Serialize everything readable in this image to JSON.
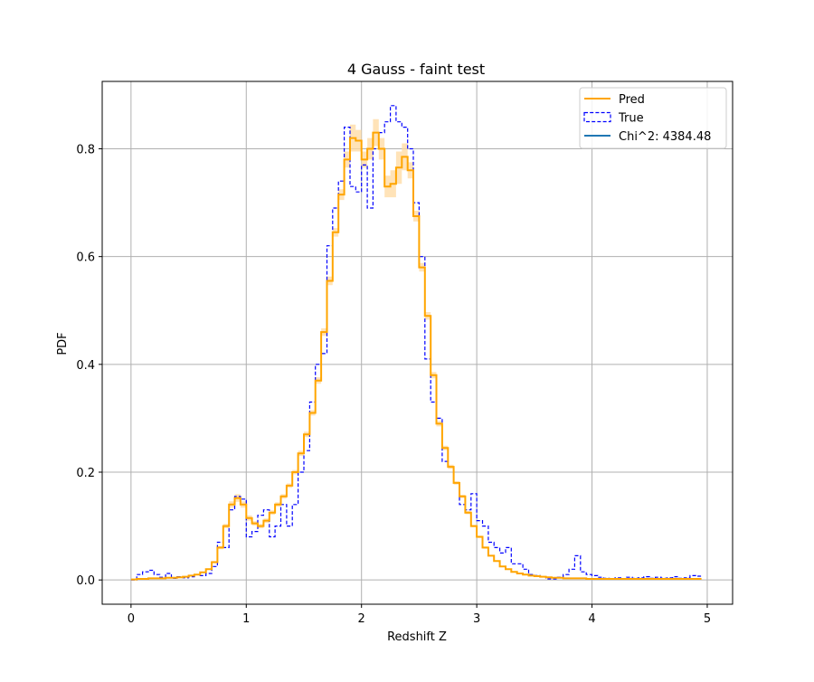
{
  "chart_data": {
    "type": "line",
    "title": "4 Gauss - faint test",
    "xlabel": "Redshift Z",
    "ylabel": "PDF",
    "xlim": [
      -0.25,
      5.22
    ],
    "ylim": [
      -0.045,
      0.925
    ],
    "x_ticks": [
      0,
      1,
      2,
      3,
      4,
      5
    ],
    "y_ticks": [
      0.0,
      0.2,
      0.4,
      0.6,
      0.8
    ],
    "x_tick_labels": [
      "0",
      "1",
      "2",
      "3",
      "4",
      "5"
    ],
    "y_tick_labels": [
      "0.0",
      "0.2",
      "0.4",
      "0.6",
      "0.8"
    ],
    "grid": true,
    "legend_position": "top-right",
    "bin_width": 0.05,
    "series": [
      {
        "name": "Pred",
        "style": "solid-step",
        "color": "#FFA500",
        "band_color": "#FFD9A0",
        "x": [
          0.0,
          0.05,
          0.1,
          0.15,
          0.2,
          0.25,
          0.3,
          0.35,
          0.4,
          0.45,
          0.5,
          0.55,
          0.6,
          0.65,
          0.7,
          0.75,
          0.8,
          0.85,
          0.9,
          0.95,
          1.0,
          1.05,
          1.1,
          1.15,
          1.2,
          1.25,
          1.3,
          1.35,
          1.4,
          1.45,
          1.5,
          1.55,
          1.6,
          1.65,
          1.7,
          1.75,
          1.8,
          1.85,
          1.9,
          1.95,
          2.0,
          2.05,
          2.1,
          2.15,
          2.2,
          2.25,
          2.3,
          2.35,
          2.4,
          2.45,
          2.5,
          2.55,
          2.6,
          2.65,
          2.7,
          2.75,
          2.8,
          2.85,
          2.9,
          2.95,
          3.0,
          3.05,
          3.1,
          3.15,
          3.2,
          3.25,
          3.3,
          3.35,
          3.4,
          3.45,
          3.5,
          3.55,
          3.6,
          3.65,
          3.7,
          3.75,
          3.8,
          3.85,
          3.9,
          3.95,
          4.0,
          4.05,
          4.1,
          4.15,
          4.2,
          4.25,
          4.3,
          4.35,
          4.4,
          4.45,
          4.5,
          4.55,
          4.6,
          4.65,
          4.7,
          4.75,
          4.8,
          4.85,
          4.9
        ],
        "values": [
          0.001,
          0.002,
          0.002,
          0.003,
          0.003,
          0.003,
          0.004,
          0.004,
          0.005,
          0.006,
          0.008,
          0.01,
          0.014,
          0.02,
          0.033,
          0.06,
          0.1,
          0.14,
          0.152,
          0.14,
          0.115,
          0.105,
          0.1,
          0.11,
          0.125,
          0.14,
          0.155,
          0.175,
          0.2,
          0.235,
          0.27,
          0.31,
          0.37,
          0.46,
          0.555,
          0.645,
          0.715,
          0.78,
          0.82,
          0.815,
          0.78,
          0.8,
          0.83,
          0.8,
          0.73,
          0.735,
          0.765,
          0.785,
          0.76,
          0.675,
          0.58,
          0.49,
          0.38,
          0.29,
          0.245,
          0.21,
          0.18,
          0.155,
          0.125,
          0.1,
          0.08,
          0.06,
          0.045,
          0.035,
          0.025,
          0.02,
          0.015,
          0.012,
          0.01,
          0.008,
          0.007,
          0.006,
          0.005,
          0.004,
          0.004,
          0.003,
          0.003,
          0.003,
          0.003,
          0.002,
          0.002,
          0.002,
          0.002,
          0.002,
          0.002,
          0.002,
          0.002,
          0.002,
          0.002,
          0.002,
          0.002,
          0.002,
          0.002,
          0.002,
          0.002,
          0.002,
          0.002,
          0.002,
          0.002
        ],
        "uncertainty": [
          0.0,
          0.0,
          0.0,
          0.0,
          0.0,
          0.0,
          0.0,
          0.0,
          0.0,
          0.0,
          0.0,
          0.0,
          0.0,
          0.0,
          0.002,
          0.003,
          0.004,
          0.006,
          0.007,
          0.006,
          0.005,
          0.004,
          0.004,
          0.004,
          0.004,
          0.004,
          0.004,
          0.004,
          0.004,
          0.005,
          0.005,
          0.005,
          0.006,
          0.007,
          0.008,
          0.008,
          0.01,
          0.015,
          0.025,
          0.02,
          0.015,
          0.02,
          0.025,
          0.02,
          0.02,
          0.025,
          0.03,
          0.025,
          0.015,
          0.01,
          0.008,
          0.007,
          0.006,
          0.005,
          0.004,
          0.004,
          0.003,
          0.003,
          0.003,
          0.002,
          0.002,
          0.002,
          0.001,
          0.001,
          0.001,
          0.001,
          0.001,
          0.0,
          0.0,
          0.0,
          0.0,
          0.0,
          0.0,
          0.0,
          0.0,
          0.0,
          0.0,
          0.0,
          0.0,
          0.0,
          0.0,
          0.0,
          0.0,
          0.0,
          0.0,
          0.0,
          0.0,
          0.0,
          0.0,
          0.0,
          0.0,
          0.0,
          0.0,
          0.0,
          0.0,
          0.0,
          0.0,
          0.0,
          0.0
        ]
      },
      {
        "name": "True",
        "style": "dashed-step",
        "color": "#0000FF",
        "x": [
          0.0,
          0.05,
          0.1,
          0.15,
          0.2,
          0.25,
          0.3,
          0.35,
          0.4,
          0.45,
          0.5,
          0.55,
          0.6,
          0.65,
          0.7,
          0.75,
          0.8,
          0.85,
          0.9,
          0.95,
          1.0,
          1.05,
          1.1,
          1.15,
          1.2,
          1.25,
          1.3,
          1.35,
          1.4,
          1.45,
          1.5,
          1.55,
          1.6,
          1.65,
          1.7,
          1.75,
          1.8,
          1.85,
          1.9,
          1.95,
          2.0,
          2.05,
          2.1,
          2.15,
          2.2,
          2.25,
          2.3,
          2.35,
          2.4,
          2.45,
          2.5,
          2.55,
          2.6,
          2.65,
          2.7,
          2.75,
          2.8,
          2.85,
          2.9,
          2.95,
          3.0,
          3.05,
          3.1,
          3.15,
          3.2,
          3.25,
          3.3,
          3.35,
          3.4,
          3.45,
          3.5,
          3.55,
          3.6,
          3.65,
          3.7,
          3.75,
          3.8,
          3.85,
          3.9,
          3.95,
          4.0,
          4.05,
          4.1,
          4.15,
          4.2,
          4.25,
          4.3,
          4.35,
          4.4,
          4.45,
          4.5,
          4.55,
          4.6,
          4.65,
          4.7,
          4.75,
          4.8,
          4.85,
          4.9
        ],
        "values": [
          0.0,
          0.01,
          0.015,
          0.018,
          0.01,
          0.005,
          0.012,
          0.003,
          0.006,
          0.004,
          0.006,
          0.01,
          0.008,
          0.012,
          0.025,
          0.07,
          0.06,
          0.13,
          0.155,
          0.15,
          0.08,
          0.09,
          0.12,
          0.13,
          0.08,
          0.1,
          0.14,
          0.1,
          0.14,
          0.2,
          0.24,
          0.33,
          0.4,
          0.42,
          0.62,
          0.69,
          0.74,
          0.84,
          0.73,
          0.72,
          0.77,
          0.69,
          0.8,
          0.83,
          0.85,
          0.88,
          0.85,
          0.84,
          0.8,
          0.7,
          0.6,
          0.41,
          0.33,
          0.3,
          0.22,
          0.21,
          0.18,
          0.14,
          0.13,
          0.16,
          0.11,
          0.1,
          0.07,
          0.06,
          0.05,
          0.06,
          0.03,
          0.03,
          0.02,
          0.01,
          0.008,
          0.006,
          0.002,
          0.002,
          0.005,
          0.01,
          0.02,
          0.045,
          0.015,
          0.01,
          0.008,
          0.005,
          0.003,
          0.002,
          0.004,
          0.002,
          0.005,
          0.003,
          0.004,
          0.006,
          0.003,
          0.005,
          0.003,
          0.004,
          0.006,
          0.003,
          0.004,
          0.008,
          0.007
        ]
      },
      {
        "name": "Chi^2: 4384.48",
        "style": "legend-only",
        "color": "#1F77B4"
      }
    ]
  }
}
